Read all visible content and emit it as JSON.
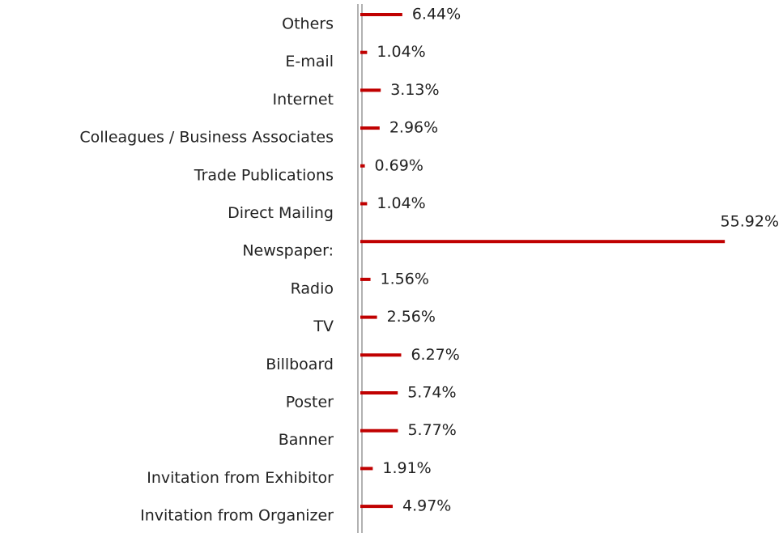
{
  "chart_data": {
    "type": "barh",
    "categories": [
      "Others",
      "E-mail",
      "Internet",
      "Colleagues / Business Associates",
      "Trade Publications",
      "Direct Mailing",
      "Newspaper:",
      "Radio",
      "TV",
      "Billboard",
      "Poster",
      "Banner",
      "Invitation from Exhibitor",
      "Invitation from Organizer"
    ],
    "values": [
      6.44,
      1.04,
      3.13,
      2.96,
      0.69,
      1.04,
      55.92,
      1.56,
      2.56,
      6.27,
      5.74,
      5.77,
      1.91,
      4.97
    ],
    "value_labels": [
      "6.44%",
      "1.04%",
      "3.13%",
      "2.96%",
      "0.69%",
      "1.04%",
      "55.92%",
      "1.56%",
      "2.56%",
      "6.27%",
      "5.74%",
      "5.77%",
      "1.91%",
      "4.97%"
    ],
    "color": "#c00000",
    "xlim": [
      0,
      60
    ]
  }
}
